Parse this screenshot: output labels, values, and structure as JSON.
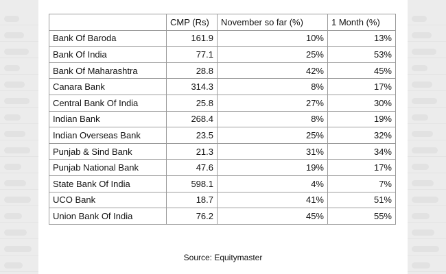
{
  "table": {
    "headers": [
      "",
      "CMP (Rs)",
      "November so far (%)",
      "1 Month (%)"
    ],
    "rows": [
      {
        "name": "Bank Of Baroda",
        "cmp": "161.9",
        "november": "10%",
        "month": "13%"
      },
      {
        "name": "Bank Of India",
        "cmp": "77.1",
        "november": "25%",
        "month": "53%"
      },
      {
        "name": "Bank Of Maharashtra",
        "cmp": "28.8",
        "november": "42%",
        "month": "45%"
      },
      {
        "name": "Canara Bank",
        "cmp": "314.3",
        "november": "8%",
        "month": "17%"
      },
      {
        "name": "Central Bank Of India",
        "cmp": "25.8",
        "november": "27%",
        "month": "30%"
      },
      {
        "name": "Indian Bank",
        "cmp": "268.4",
        "november": "8%",
        "month": "19%"
      },
      {
        "name": "Indian Overseas Bank",
        "cmp": "23.5",
        "november": "25%",
        "month": "32%"
      },
      {
        "name": "Punjab & Sind Bank",
        "cmp": "21.3",
        "november": "31%",
        "month": "34%"
      },
      {
        "name": "Punjab National Bank",
        "cmp": "47.6",
        "november": "19%",
        "month": "17%"
      },
      {
        "name": "State Bank Of India",
        "cmp": "598.1",
        "november": "4%",
        "month": "7%"
      },
      {
        "name": "UCO Bank",
        "cmp": "18.7",
        "november": "41%",
        "month": "51%"
      },
      {
        "name": "Union Bank Of India",
        "cmp": "76.2",
        "november": "45%",
        "month": "55%"
      }
    ]
  },
  "source": "Source: Equitymaster"
}
